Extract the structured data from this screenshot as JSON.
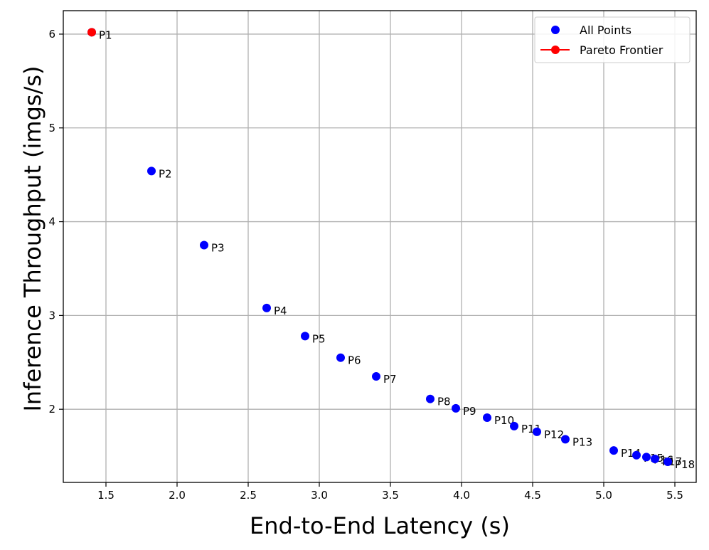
{
  "chart_data": {
    "type": "scatter",
    "title": "",
    "xlabel": "End-to-End Latency (s)",
    "ylabel": "Inference Throughput (imgs/s)",
    "xlim": [
      1.2,
      5.65
    ],
    "ylim": [
      1.22,
      6.25
    ],
    "xticks": [
      1.5,
      2.0,
      2.5,
      3.0,
      3.5,
      4.0,
      4.5,
      5.0,
      5.5
    ],
    "xtick_labels": [
      "1.5",
      "2.0",
      "2.5",
      "3.0",
      "3.5",
      "4.0",
      "4.5",
      "5.0",
      "5.5"
    ],
    "yticks": [
      2,
      3,
      4,
      5,
      6
    ],
    "ytick_labels": [
      "2",
      "3",
      "4",
      "5",
      "6"
    ],
    "grid": true,
    "legend_position": "top-right",
    "series": [
      {
        "name": "All Points",
        "color": "#0000ff",
        "marker": "circle",
        "points": [
          {
            "label": "P1",
            "x": 1.4,
            "y": 6.02
          },
          {
            "label": "P2",
            "x": 1.82,
            "y": 4.54
          },
          {
            "label": "P3",
            "x": 2.19,
            "y": 3.75
          },
          {
            "label": "P4",
            "x": 2.63,
            "y": 3.08
          },
          {
            "label": "P5",
            "x": 2.9,
            "y": 2.78
          },
          {
            "label": "P6",
            "x": 3.15,
            "y": 2.55
          },
          {
            "label": "P7",
            "x": 3.4,
            "y": 2.35
          },
          {
            "label": "P8",
            "x": 3.78,
            "y": 2.11
          },
          {
            "label": "P9",
            "x": 3.96,
            "y": 2.01
          },
          {
            "label": "P10",
            "x": 4.18,
            "y": 1.91
          },
          {
            "label": "P11",
            "x": 4.37,
            "y": 1.82
          },
          {
            "label": "P12",
            "x": 4.53,
            "y": 1.76
          },
          {
            "label": "P13",
            "x": 4.73,
            "y": 1.68
          },
          {
            "label": "P14",
            "x": 5.07,
            "y": 1.56
          },
          {
            "label": "P15",
            "x": 5.23,
            "y": 1.51
          },
          {
            "label": "P16",
            "x": 5.3,
            "y": 1.49
          },
          {
            "label": "P17",
            "x": 5.36,
            "y": 1.47
          },
          {
            "label": "P18",
            "x": 5.45,
            "y": 1.44
          }
        ]
      },
      {
        "name": "Pareto Frontier",
        "color": "#ff0000",
        "marker": "circle-line",
        "points": [
          {
            "x": 1.4,
            "y": 6.02
          }
        ]
      }
    ]
  }
}
